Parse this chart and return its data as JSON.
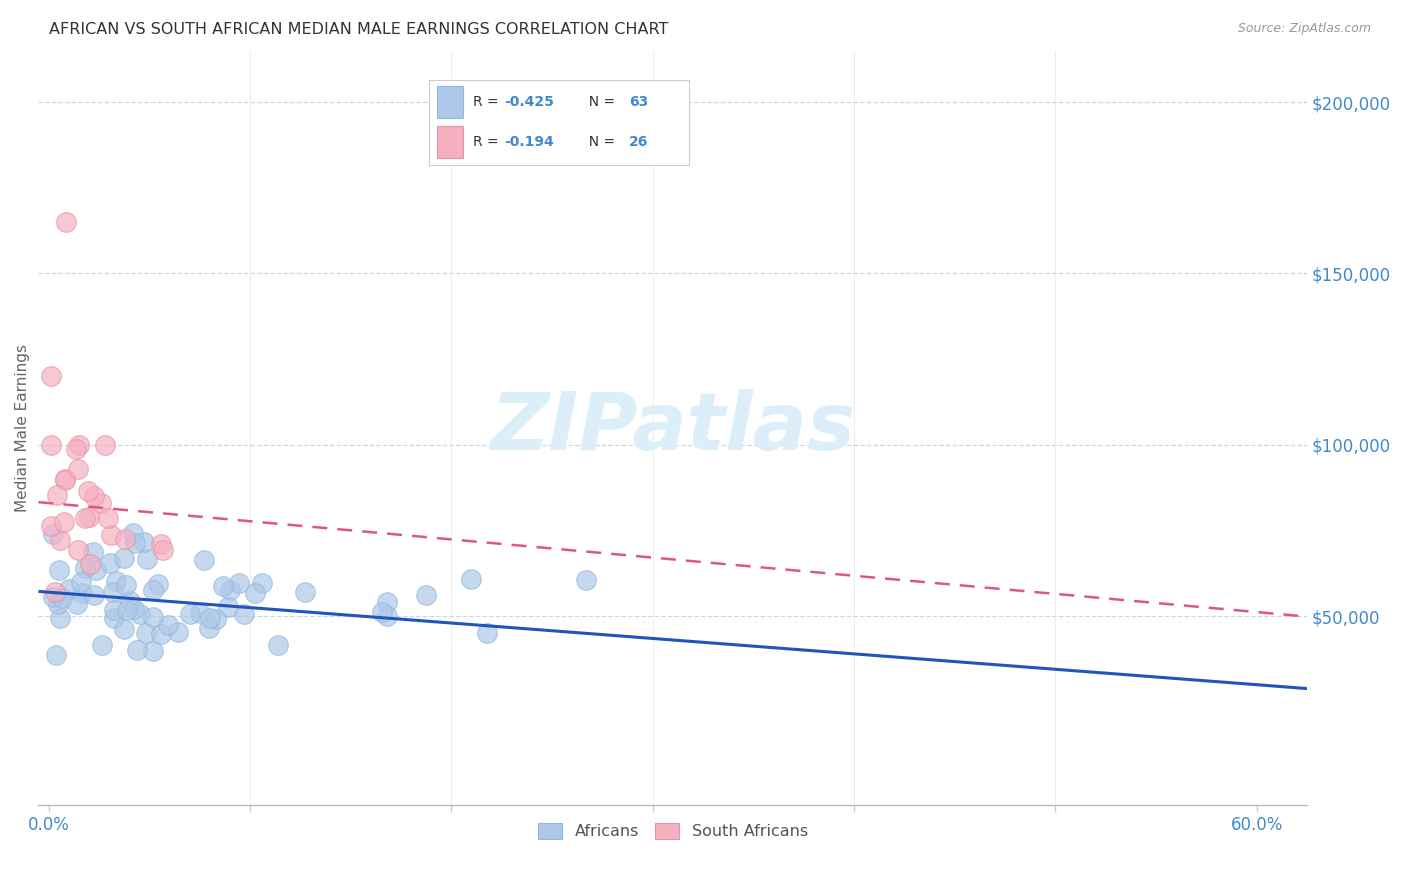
{
  "title": "AFRICAN VS SOUTH AFRICAN MEDIAN MALE EARNINGS CORRELATION CHART",
  "source": "Source: ZipAtlas.com",
  "ylabel": "Median Male Earnings",
  "ytick_labels": [
    "$50,000",
    "$100,000",
    "$150,000",
    "$200,000"
  ],
  "ytick_vals": [
    50000,
    100000,
    150000,
    200000
  ],
  "ylim": [
    -5000,
    215000
  ],
  "xlim": [
    -0.005,
    0.625
  ],
  "africans_R": -0.425,
  "africans_N": 63,
  "south_africans_R": -0.194,
  "south_africans_N": 26,
  "africans_color": "#adc8e8",
  "africans_edge_color": "#90b8e0",
  "africans_line_color": "#2255bb",
  "south_africans_color": "#f5b0c0",
  "south_africans_edge_color": "#e890a8",
  "south_africans_line_color": "#e05878",
  "watermark_color": "#dceef8",
  "background_color": "#ffffff",
  "grid_color": "#c8d8e8",
  "title_color": "#333333",
  "axis_label_color": "#666666",
  "ytick_color": "#4488cc",
  "xtick_color": "#4488cc",
  "legend_text_color": "#333333",
  "legend_val_color": "#4488cc"
}
